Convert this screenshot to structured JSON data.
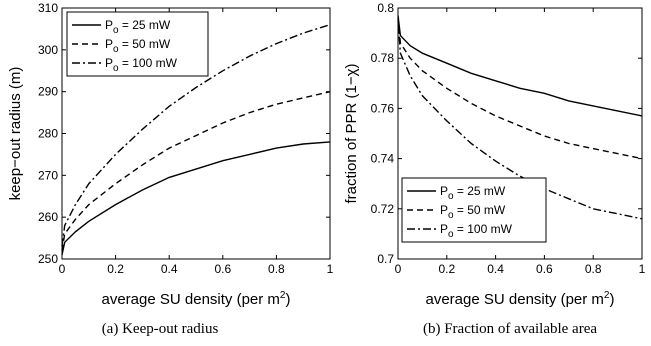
{
  "chart_data": [
    {
      "type": "line",
      "caption": "(a)  Keep-out radius",
      "xlabel": "average SU density (per m",
      "xlabel_sup": "2",
      "xlabel_end": ")",
      "ylabel": "keep−out radius (m)",
      "xlim": [
        0,
        1
      ],
      "ylim": [
        250,
        310
      ],
      "xticks": [
        0,
        0.2,
        0.4,
        0.6,
        0.8,
        1
      ],
      "xtick_labels": [
        "0",
        "0.2",
        "0.4",
        "0.6",
        "0.8",
        "1"
      ],
      "yticks": [
        250,
        260,
        270,
        280,
        290,
        300,
        310
      ],
      "ytick_labels": [
        "250",
        "260",
        "270",
        "280",
        "290",
        "300",
        "310"
      ],
      "legend_position": "top-left",
      "series": [
        {
          "name": "P",
          "name_sub": "o",
          "name_rest": " = 25 mW",
          "dash": "solid",
          "x": [
            0,
            0.01,
            0.05,
            0.1,
            0.2,
            0.3,
            0.4,
            0.5,
            0.6,
            0.7,
            0.8,
            0.9,
            1.0
          ],
          "y": [
            251,
            254,
            256.5,
            259,
            263,
            266.5,
            269.5,
            271.5,
            273.5,
            275,
            276.5,
            277.5,
            278
          ]
        },
        {
          "name": "P",
          "name_sub": "o",
          "name_rest": " = 50 mW",
          "dash": "dashed",
          "x": [
            0,
            0.01,
            0.05,
            0.1,
            0.2,
            0.3,
            0.4,
            0.5,
            0.6,
            0.7,
            0.8,
            0.9,
            1.0
          ],
          "y": [
            252,
            256,
            259.5,
            263,
            268,
            272.5,
            276.5,
            279.5,
            282.5,
            285,
            287,
            288.5,
            290
          ]
        },
        {
          "name": "P",
          "name_sub": "o",
          "name_rest": " = 100 mW",
          "dash": "dashdot",
          "x": [
            0,
            0.01,
            0.05,
            0.1,
            0.2,
            0.3,
            0.4,
            0.5,
            0.6,
            0.7,
            0.8,
            0.9,
            1.0
          ],
          "y": [
            253,
            258,
            263,
            268,
            275,
            281,
            286.5,
            291,
            295,
            298.5,
            301.5,
            304,
            306
          ]
        }
      ]
    },
    {
      "type": "line",
      "caption": "(b)  Fraction of available area",
      "xlabel": "average SU density (per m",
      "xlabel_sup": "2",
      "xlabel_end": ")",
      "ylabel": "fraction of PPR (1−χ)",
      "xlim": [
        0,
        1
      ],
      "ylim": [
        0.7,
        0.8
      ],
      "xticks": [
        0,
        0.2,
        0.4,
        0.6,
        0.8,
        1
      ],
      "xtick_labels": [
        "0",
        "0.2",
        "0.4",
        "0.6",
        "0.8",
        "1"
      ],
      "yticks": [
        0.7,
        0.72,
        0.74,
        0.76,
        0.78,
        0.8
      ],
      "ytick_labels": [
        "0.7",
        "0.72",
        "0.74",
        "0.76",
        "0.78",
        "0.8"
      ],
      "legend_position": "bottom-left",
      "series": [
        {
          "name": "P",
          "name_sub": "o",
          "name_rest": " = 25 mW",
          "dash": "solid",
          "x": [
            0,
            0.01,
            0.05,
            0.1,
            0.2,
            0.3,
            0.4,
            0.5,
            0.6,
            0.7,
            0.8,
            0.9,
            1.0
          ],
          "y": [
            0.797,
            0.789,
            0.785,
            0.782,
            0.778,
            0.774,
            0.771,
            0.768,
            0.766,
            0.763,
            0.761,
            0.759,
            0.757
          ]
        },
        {
          "name": "P",
          "name_sub": "o",
          "name_rest": " = 50 mW",
          "dash": "dashed",
          "x": [
            0,
            0.01,
            0.05,
            0.1,
            0.2,
            0.3,
            0.4,
            0.5,
            0.6,
            0.7,
            0.8,
            0.9,
            1.0
          ],
          "y": [
            0.796,
            0.786,
            0.78,
            0.775,
            0.768,
            0.762,
            0.757,
            0.753,
            0.749,
            0.746,
            0.744,
            0.742,
            0.74
          ]
        },
        {
          "name": "P",
          "name_sub": "o",
          "name_rest": " = 100 mW",
          "dash": "dashdot",
          "x": [
            0,
            0.01,
            0.05,
            0.1,
            0.2,
            0.3,
            0.4,
            0.5,
            0.6,
            0.7,
            0.8,
            0.9,
            1.0
          ],
          "y": [
            0.795,
            0.782,
            0.773,
            0.765,
            0.755,
            0.746,
            0.739,
            0.733,
            0.728,
            0.724,
            0.72,
            0.718,
            0.716
          ]
        }
      ]
    }
  ]
}
